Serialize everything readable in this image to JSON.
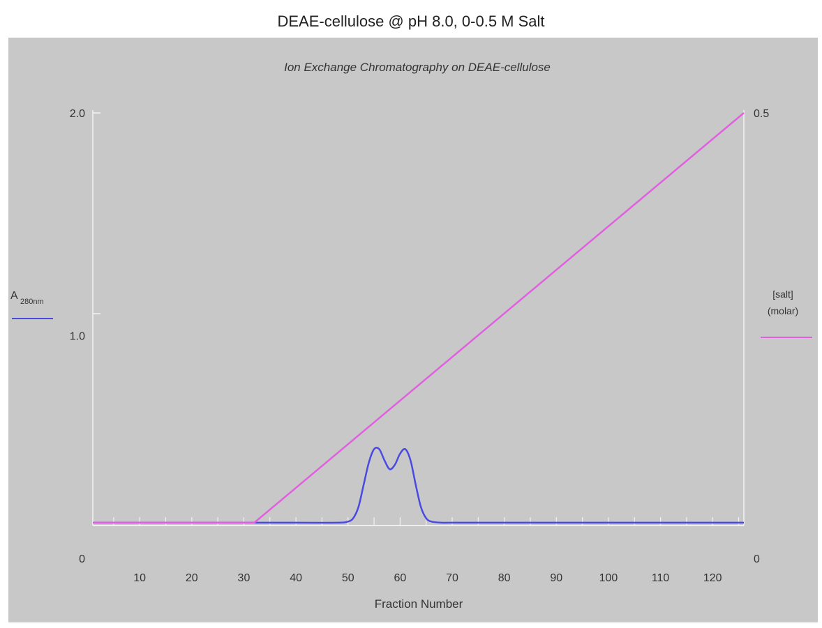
{
  "page_title": "DEAE-cellulose  @ pH 8.0, 0-0.5 M Salt",
  "chart_data": {
    "type": "line",
    "title": "Ion Exchange Chromatography on DEAE-cellulose",
    "xlabel": "Fraction Number",
    "xlim": [
      1,
      126
    ],
    "x_ticks": [
      10,
      20,
      30,
      40,
      50,
      60,
      70,
      80,
      90,
      100,
      110,
      120
    ],
    "x_tick_labels": [
      "10",
      "20",
      "30",
      "40",
      "50",
      "60",
      "70",
      "80",
      "90",
      "100",
      "110",
      "120"
    ],
    "y_left": {
      "label_main": "A",
      "label_sub": "280nm",
      "lim": [
        0,
        2.0
      ],
      "tick_labels": [
        {
          "value": 0,
          "text": "0"
        },
        {
          "value": 1.0,
          "text": "1.0"
        },
        {
          "value": 2.0,
          "text": "2.0"
        }
      ],
      "minor_ticks": [
        1.6
      ]
    },
    "y_right": {
      "label_line1": "[salt]",
      "label_line2": "(molar)",
      "lim": [
        0,
        0.5
      ],
      "tick_labels": [
        {
          "value": 0,
          "text": "0"
        },
        {
          "value": 0.5,
          "text": "0.5"
        }
      ]
    },
    "grid": false,
    "series": [
      {
        "axis": "left",
        "color": "#4a4ae0",
        "x": [
          1,
          10,
          20,
          30,
          40,
          48,
          50,
          51,
          52,
          53,
          54,
          55,
          56,
          57,
          58,
          59,
          60,
          61,
          62,
          63,
          64,
          65,
          66,
          68,
          70,
          80,
          90,
          100,
          110,
          120,
          126
        ],
        "y": [
          0.16,
          0.16,
          0.16,
          0.16,
          0.16,
          0.16,
          0.165,
          0.18,
          0.23,
          0.33,
          0.43,
          0.49,
          0.49,
          0.44,
          0.4,
          0.42,
          0.47,
          0.49,
          0.44,
          0.33,
          0.23,
          0.18,
          0.165,
          0.16,
          0.16,
          0.16,
          0.16,
          0.16,
          0.16,
          0.16,
          0.16
        ]
      },
      {
        "axis": "right",
        "color": "#e060e0",
        "x": [
          1,
          32,
          126
        ],
        "y": [
          0.04,
          0.04,
          0.5
        ]
      }
    ]
  }
}
